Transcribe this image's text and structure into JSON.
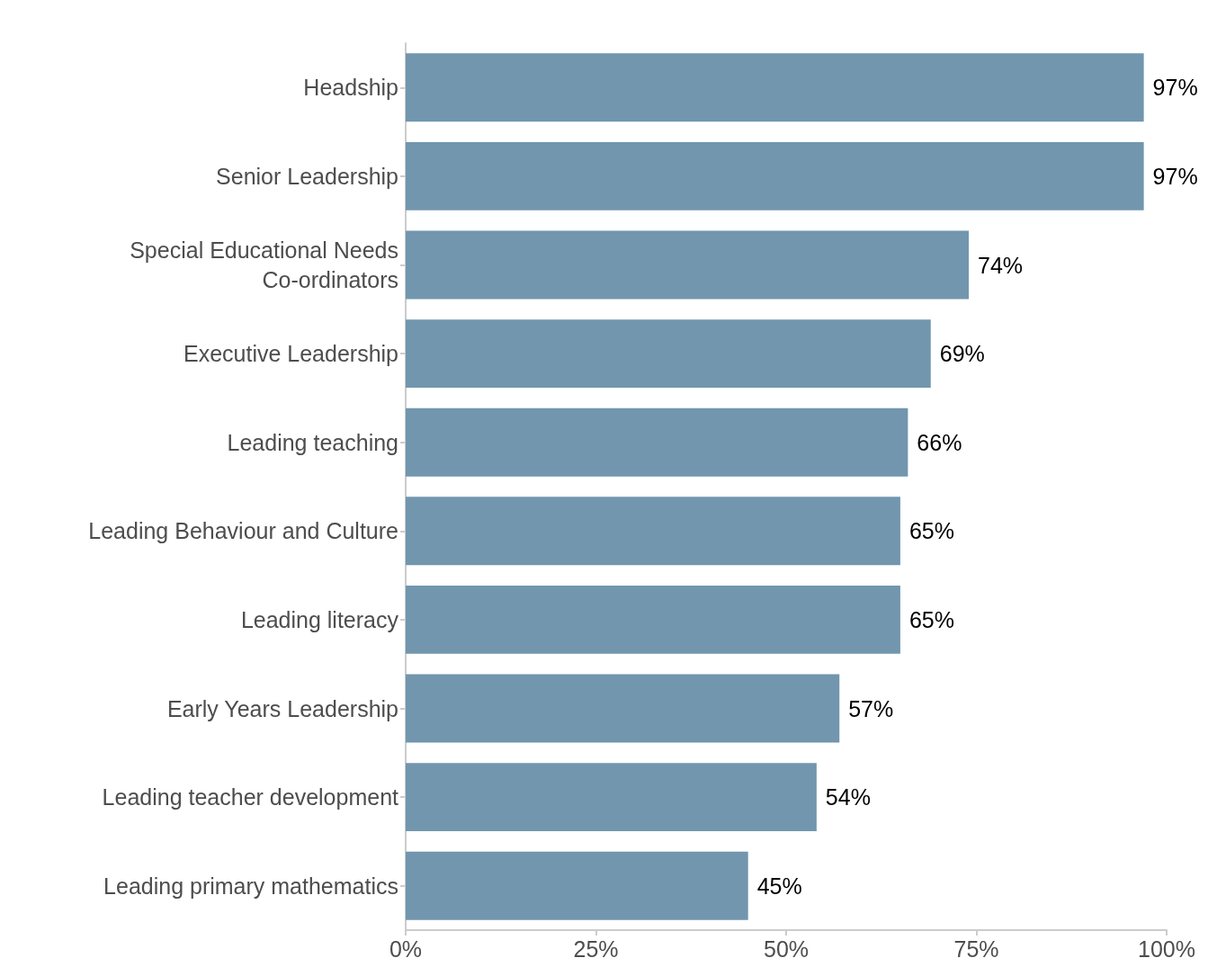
{
  "chart_data": {
    "type": "bar",
    "orientation": "horizontal",
    "categories": [
      "Headship",
      "Senior Leadership",
      "Special Educational Needs\nCo-ordinators",
      "Executive Leadership",
      "Leading teaching",
      "Leading Behaviour and Culture",
      "Leading literacy",
      "Early Years Leadership",
      "Leading teacher development",
      "Leading primary mathematics"
    ],
    "values": [
      97,
      97,
      74,
      69,
      66,
      65,
      65,
      57,
      54,
      45
    ],
    "value_labels": [
      "97%",
      "97%",
      "74%",
      "69%",
      "66%",
      "65%",
      "65%",
      "57%",
      "54%",
      "45%"
    ],
    "color": "#7196ae",
    "xlim": [
      0,
      100
    ],
    "xticks": [
      {
        "value": 0,
        "label": "0%"
      },
      {
        "value": 25,
        "label": "25%"
      },
      {
        "value": 50,
        "label": "50%"
      },
      {
        "value": 75,
        "label": "75%"
      },
      {
        "value": 100,
        "label": "100%"
      }
    ],
    "grid": false
  }
}
